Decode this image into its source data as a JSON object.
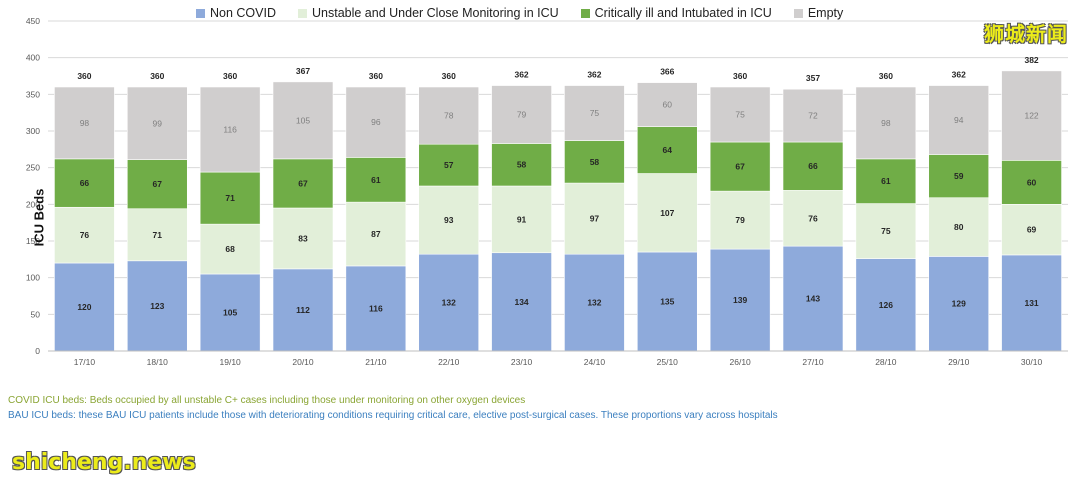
{
  "chart_data": {
    "type": "bar",
    "stacked": true,
    "title": "",
    "xlabel": "",
    "ylabel": "ICU Beds",
    "ylim": [
      0,
      450
    ],
    "yticks": [
      0,
      50,
      100,
      150,
      200,
      250,
      300,
      350,
      400,
      450
    ],
    "grid": true,
    "legend_position": "top",
    "categories": [
      "17/10",
      "18/10",
      "19/10",
      "20/10",
      "21/10",
      "22/10",
      "23/10",
      "24/10",
      "25/10",
      "26/10",
      "27/10",
      "28/10",
      "29/10",
      "30/10"
    ],
    "series": [
      {
        "name": "Non COVID",
        "color": "#8eaadb",
        "values": [
          120,
          123,
          105,
          112,
          116,
          132,
          134,
          132,
          135,
          139,
          143,
          126,
          129,
          131
        ]
      },
      {
        "name": "Unstable and Under Close Monitoring in ICU",
        "color": "#e2efd9",
        "values": [
          76,
          71,
          68,
          83,
          87,
          93,
          91,
          97,
          107,
          79,
          76,
          75,
          80,
          69
        ]
      },
      {
        "name": "Critically ill and Intubated in ICU",
        "color": "#70ad47",
        "values": [
          66,
          67,
          71,
          67,
          61,
          57,
          58,
          58,
          64,
          67,
          66,
          61,
          59,
          60
        ]
      },
      {
        "name": "Empty",
        "color": "#d0cece",
        "values": [
          98,
          99,
          116,
          105,
          96,
          78,
          79,
          75,
          60,
          75,
          72,
          98,
          94,
          122
        ]
      }
    ],
    "totals": [
      360,
      360,
      360,
      367,
      360,
      360,
      362,
      362,
      366,
      360,
      357,
      360,
      362,
      382
    ]
  },
  "notes": {
    "covid": "COVID ICU beds: Beds occupied by all unstable C+ cases including those under monitoring on other oxygen devices",
    "bau": "BAU ICU beds: these BAU ICU patients include those with deteriorating conditions requiring critical care, elective post-surgical cases. These proportions vary across hospitals"
  },
  "watermarks": {
    "cn": "狮城新闻",
    "en": "shicheng.news"
  }
}
